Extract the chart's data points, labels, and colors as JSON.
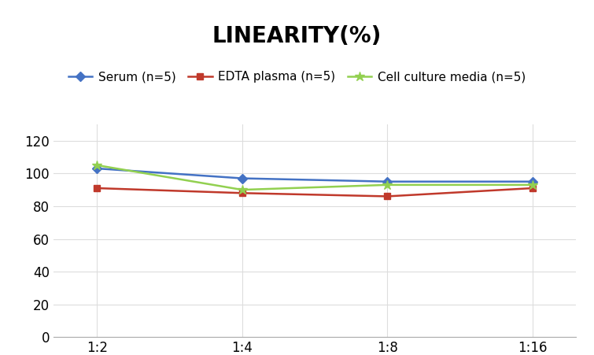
{
  "title": "LINEARITY(%)",
  "title_fontsize": 20,
  "title_fontweight": "bold",
  "x_labels": [
    "1:2",
    "1:4",
    "1:8",
    "1:16"
  ],
  "series": [
    {
      "label": "Serum (n=5)",
      "values": [
        103,
        97,
        95,
        95
      ],
      "color": "#4472C4",
      "marker": "D",
      "markersize": 6,
      "linewidth": 1.8
    },
    {
      "label": "EDTA plasma (n=5)",
      "values": [
        91,
        88,
        86,
        91
      ],
      "color": "#C0392B",
      "marker": "s",
      "markersize": 6,
      "linewidth": 1.8
    },
    {
      "label": "Cell culture media (n=5)",
      "values": [
        105,
        90,
        93,
        93
      ],
      "color": "#92D050",
      "marker": "*",
      "markersize": 9,
      "linewidth": 1.8
    }
  ],
  "ylim": [
    0,
    130
  ],
  "yticks": [
    0,
    20,
    40,
    60,
    80,
    100,
    120
  ],
  "grid_color": "#DDDDDD",
  "background_color": "#FFFFFF",
  "legend_fontsize": 11,
  "axis_fontsize": 12
}
